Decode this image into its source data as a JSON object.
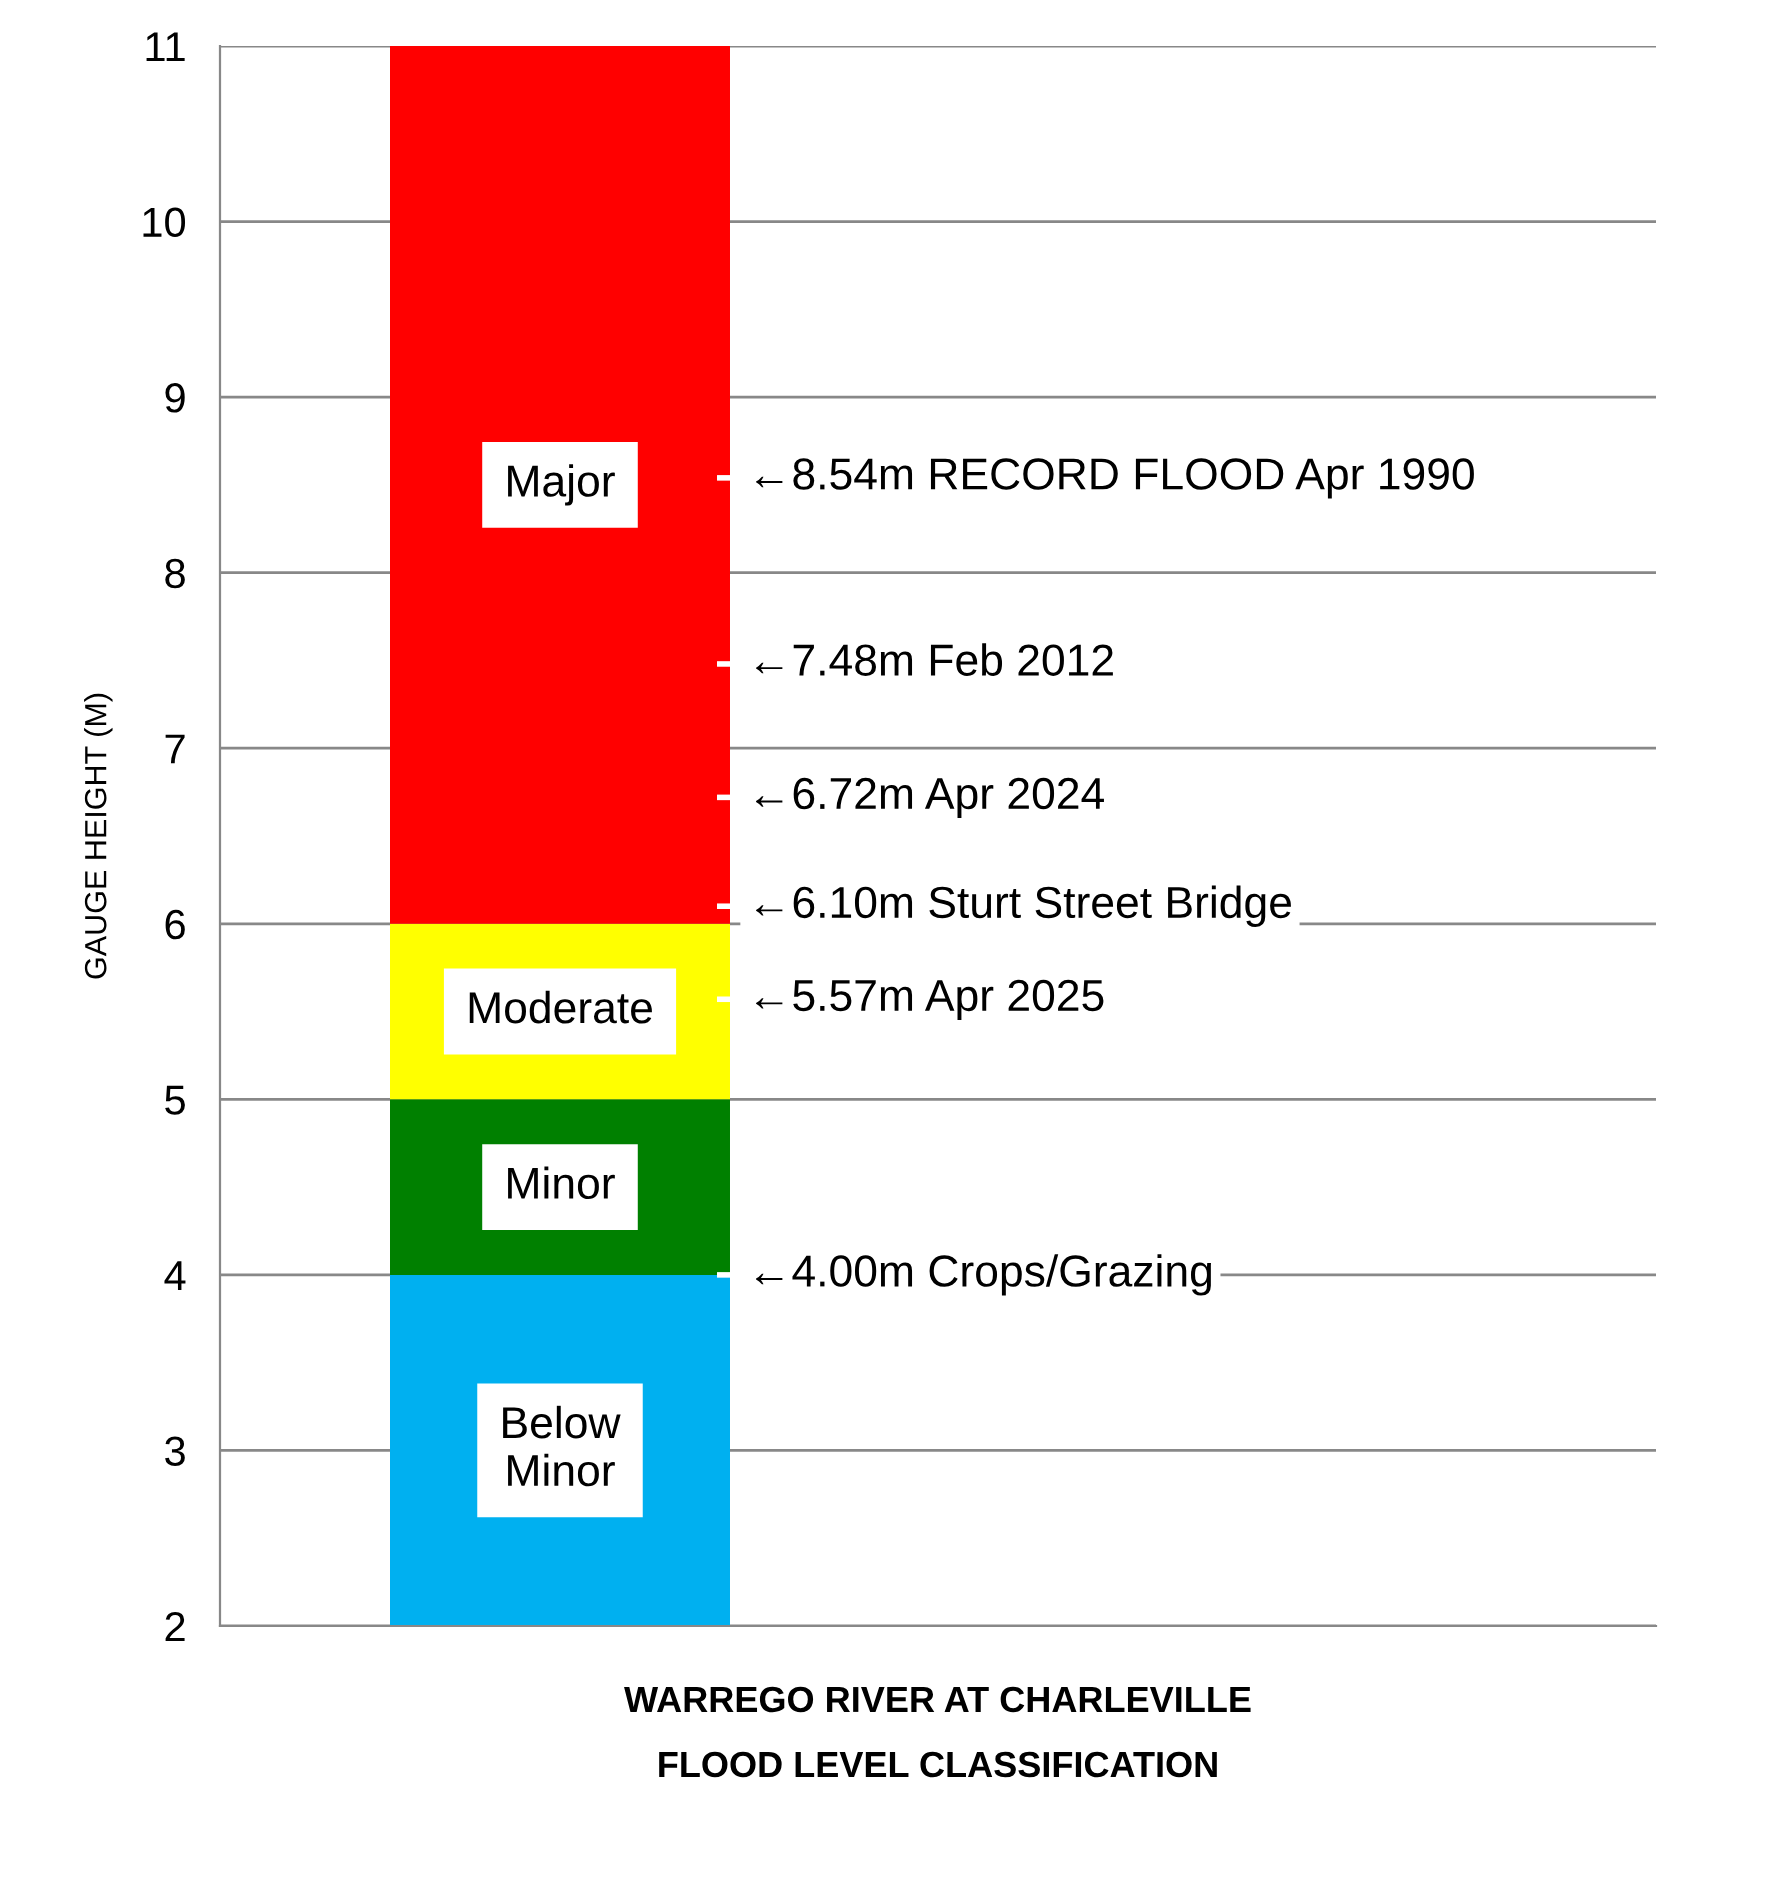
{
  "chart_data": {
    "type": "bar",
    "categories": [
      null
    ],
    "series": [
      {
        "name": "Below Minor",
        "color": "#00b0f0",
        "base": [
          2
        ],
        "values": [
          2
        ]
      },
      {
        "name": "Minor",
        "color": "#008000",
        "base": [
          4
        ],
        "values": [
          1
        ]
      },
      {
        "name": "Moderate",
        "color": "#ffff00",
        "base": [
          5
        ],
        "values": [
          1
        ]
      },
      {
        "name": "Major",
        "color": "#ff0000",
        "base": [
          6
        ],
        "values": [
          5
        ]
      }
    ],
    "ylabel": "GAUGE HEIGHT (M)",
    "xlabel": "WARREGO RIVER AT CHARLEVILLE\nFLOOD LEVEL CLASSIFICATION",
    "ylim": [
      2,
      11
    ],
    "yticks": [
      2,
      3,
      4,
      5,
      6,
      7,
      8,
      9,
      10,
      11
    ],
    "grid": "y",
    "ref_lines": [
      {
        "axis": "y",
        "value": 8.54,
        "label": "←8.54m RECORD FLOOD Apr 1990",
        "color": "#ffffff"
      },
      {
        "axis": "y",
        "value": 7.48,
        "label": "←7.48m Feb 2012",
        "color": "#ffffff"
      },
      {
        "axis": "y",
        "value": 6.72,
        "label": "←6.72m Apr 2024",
        "color": "#ffffff"
      },
      {
        "axis": "y",
        "value": 6.1,
        "label": "←6.10m Sturt Street Bridge",
        "color": "#ffffff"
      },
      {
        "axis": "y",
        "value": 5.57,
        "label": "←5.57m Apr 2025",
        "color": "#ffffff"
      },
      {
        "axis": "y",
        "value": 4.0,
        "label": "←4.00m Crops/Grazing",
        "color": "#ffffff"
      }
    ]
  }
}
